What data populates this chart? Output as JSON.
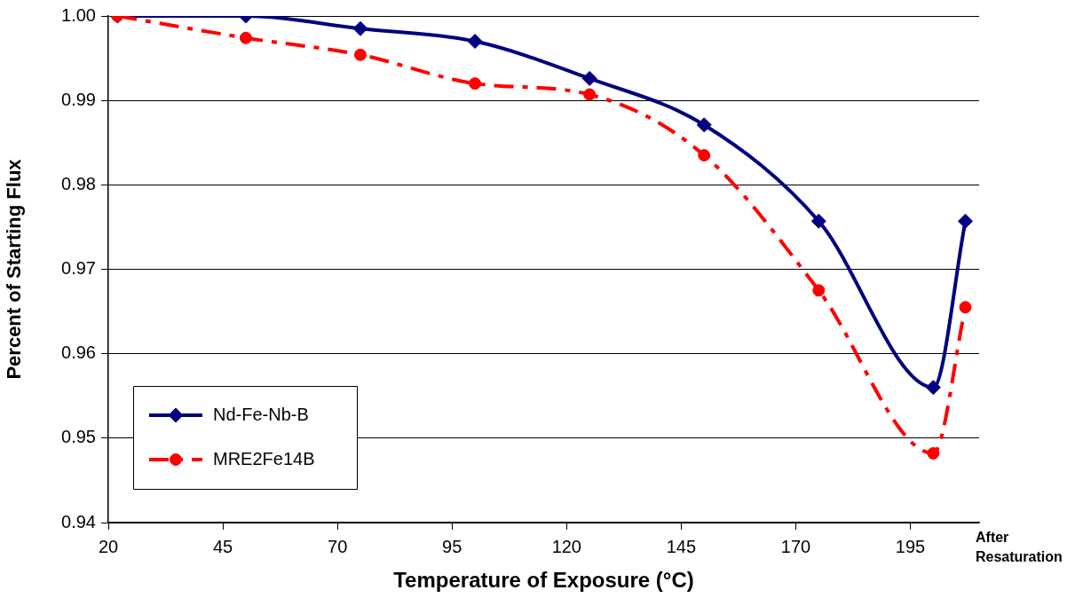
{
  "chart_data": {
    "type": "line",
    "xlabel": "Temperature of Exposure (°C)",
    "ylabel": "Percent of Starting Flux",
    "x": [
      22,
      50,
      75,
      100,
      125,
      150,
      175,
      200,
      207
    ],
    "series": [
      {
        "name": "Nd-Fe-Nb-B",
        "color": "#000080",
        "marker": "diamond",
        "line_style": "solid",
        "values": [
          1.0,
          1.0,
          0.9985,
          0.997,
          0.9926,
          0.9871,
          0.9757,
          0.956,
          0.9757
        ]
      },
      {
        "name": "MRE2Fe14B",
        "color": "#ff0000",
        "marker": "circle",
        "line_style": "dashed",
        "values": [
          1.0,
          0.9974,
          0.9954,
          0.992,
          0.9907,
          0.9835,
          0.9675,
          0.9482,
          0.9655
        ]
      }
    ],
    "xlim": [
      20,
      210
    ],
    "xticks": [
      20,
      45,
      70,
      95,
      120,
      145,
      170,
      195
    ],
    "ylim": [
      0.94,
      1.0
    ],
    "yticks": [
      0.94,
      0.95,
      0.96,
      0.97,
      0.98,
      0.99,
      {
        "value": 1.0,
        "label": "1.00"
      }
    ],
    "grid": "y",
    "legend": "bottom left",
    "annotations": [
      "After Resaturation"
    ]
  }
}
